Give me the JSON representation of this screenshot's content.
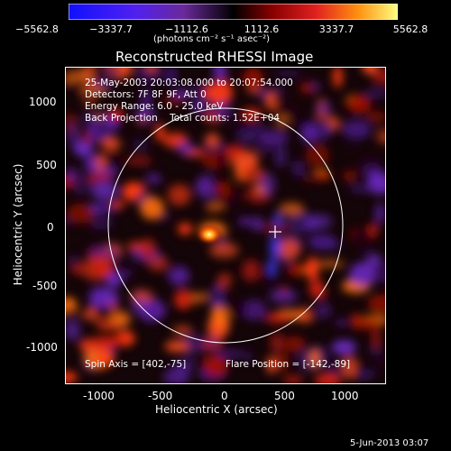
{
  "colorbar": {
    "tick_labels": [
      "−5562.8",
      "−3337.7",
      "−1112.6",
      "1112.6",
      "3337.7",
      "5562.8"
    ],
    "unit_label": "(photons cm⁻² s⁻¹ asec⁻²)"
  },
  "plot": {
    "title": "Reconstructed RHESSI Image",
    "info_lines": [
      "25-May-2003 20:03:08.000 to 20:07:54.000",
      "Detectors: 7F 8F 9F, Att 0",
      "Energy Range: 6.0 - 25.0 keV",
      "Back Projection    Total counts: 1.52E+04"
    ],
    "spin_axis": "Spin Axis = [402,-75]",
    "flare_position": "Flare Position = [-142,-89]",
    "x_axis_label": "Heliocentric X (arcsec)",
    "y_axis_label": "Heliocentric Y (arcsec)",
    "x_ticks": [
      "-1000",
      "-500",
      "0",
      "500",
      "1000"
    ],
    "y_ticks": [
      "1000",
      "500",
      "0",
      "-500",
      "-1000"
    ]
  },
  "footer": {
    "date": "5-Jun-2013 03:07"
  }
}
